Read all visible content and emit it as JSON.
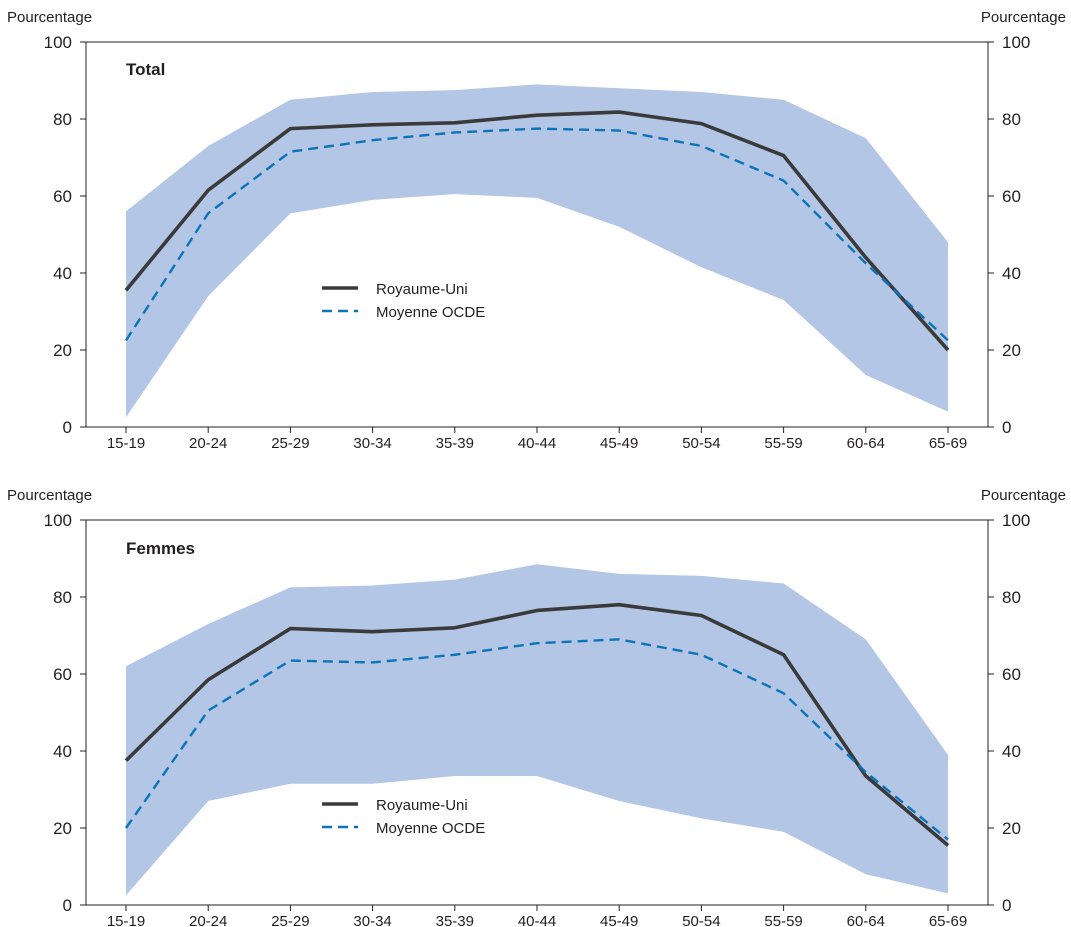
{
  "chart_data": [
    {
      "type": "line",
      "title": "Total",
      "ylabel_left": "Pourcentage",
      "ylabel_right": "Pourcentage",
      "ylim": [
        0,
        100
      ],
      "yticks": [
        0,
        20,
        40,
        60,
        80,
        100
      ],
      "categories": [
        "15-19",
        "20-24",
        "25-29",
        "30-34",
        "35-39",
        "40-44",
        "45-49",
        "50-54",
        "55-59",
        "60-64",
        "65-69"
      ],
      "band": {
        "lower": [
          2.5,
          34,
          55.5,
          59,
          60.5,
          59.5,
          52,
          41.5,
          33,
          13.5,
          4
        ],
        "upper": [
          56,
          73,
          85,
          87,
          87.5,
          89,
          88,
          87,
          85,
          75,
          48
        ]
      },
      "series": [
        {
          "name": "Royaume-Uni",
          "values": [
            35.5,
            61.5,
            77.5,
            78.5,
            79,
            81,
            81.8,
            78.8,
            70.5,
            44,
            20
          ]
        },
        {
          "name": "Moyenne OCDE",
          "values": [
            22.5,
            55.5,
            71.5,
            74.5,
            76.5,
            77.5,
            77,
            73,
            64,
            42.5,
            22.5
          ]
        }
      ],
      "colors": {
        "band": "#b3c6e6",
        "Royaume-Uni": "#3a3a3a",
        "Moyenne OCDE": "#0b74b8"
      },
      "legend_position": "center"
    },
    {
      "type": "line",
      "title": "Femmes",
      "ylabel_left": "Pourcentage",
      "ylabel_right": "Pourcentage",
      "ylim": [
        0,
        100
      ],
      "yticks": [
        0,
        20,
        40,
        60,
        80,
        100
      ],
      "categories": [
        "15-19",
        "20-24",
        "25-29",
        "30-34",
        "35-39",
        "40-44",
        "45-49",
        "50-54",
        "55-59",
        "60-64",
        "65-69"
      ],
      "band": {
        "lower": [
          2.5,
          27,
          31.5,
          31.5,
          33.5,
          33.5,
          27,
          22.5,
          19,
          8,
          3
        ],
        "upper": [
          62,
          73,
          82.5,
          83,
          84.5,
          88.5,
          86,
          85.5,
          83.5,
          69,
          39
        ]
      },
      "series": [
        {
          "name": "Royaume-Uni",
          "values": [
            37.5,
            58.5,
            71.8,
            71,
            72,
            76.5,
            78,
            75.2,
            65,
            33.5,
            15.5
          ]
        },
        {
          "name": "Moyenne OCDE",
          "values": [
            20,
            50.5,
            63.5,
            63,
            65,
            68,
            69,
            65,
            55,
            34.5,
            17
          ]
        }
      ],
      "colors": {
        "band": "#b3c6e6",
        "Royaume-Uni": "#3a3a3a",
        "Moyenne OCDE": "#0b74b8"
      },
      "legend_position": "center"
    }
  ]
}
